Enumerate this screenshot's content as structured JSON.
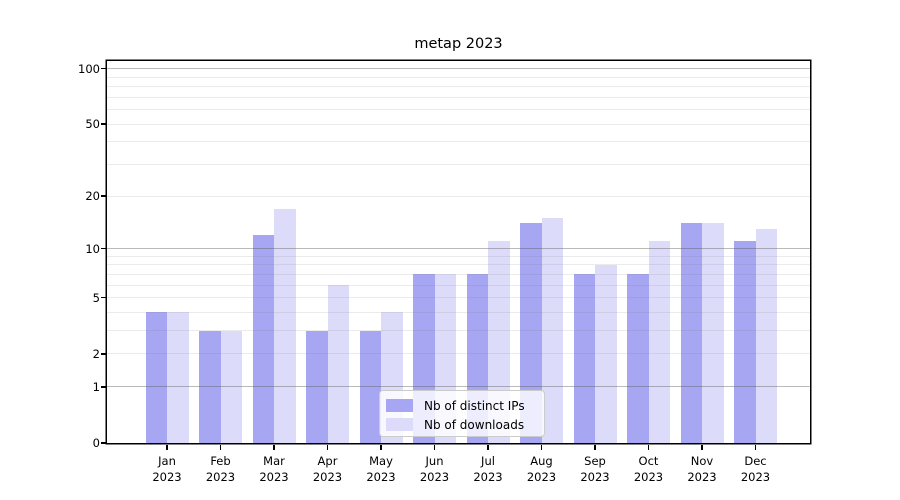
{
  "chart_data": {
    "type": "bar",
    "title": "metap 2023",
    "categories": [
      "Jan 2023",
      "Feb 2023",
      "Mar 2023",
      "Apr 2023",
      "May 2023",
      "Jun 2023",
      "Jul 2023",
      "Aug 2023",
      "Sep 2023",
      "Oct 2023",
      "Nov 2023",
      "Dec 2023"
    ],
    "series": [
      {
        "name": "Nb of distinct IPs",
        "color": "#a6a6f2",
        "values": [
          4,
          3,
          12,
          3,
          3,
          7,
          7,
          14,
          7,
          7,
          14,
          11
        ]
      },
      {
        "name": "Nb of downloads",
        "color": "#dcdcfa",
        "values": [
          4,
          3,
          17,
          6,
          4,
          7,
          11,
          15,
          8,
          11,
          14,
          13
        ]
      }
    ],
    "xlabel": "",
    "ylabel": "",
    "yscale": "symlog (ln(1+v))",
    "ylim": [
      0,
      110
    ],
    "yticks": [
      0,
      1,
      2,
      5,
      10,
      20,
      50,
      100
    ],
    "major_gridlines": [
      1,
      10,
      100
    ],
    "minor_gridlines": [
      2,
      3,
      4,
      5,
      6,
      7,
      8,
      9,
      20,
      30,
      40,
      50,
      60,
      70,
      80,
      90
    ],
    "grid": "on",
    "legend_position": "lower center"
  }
}
